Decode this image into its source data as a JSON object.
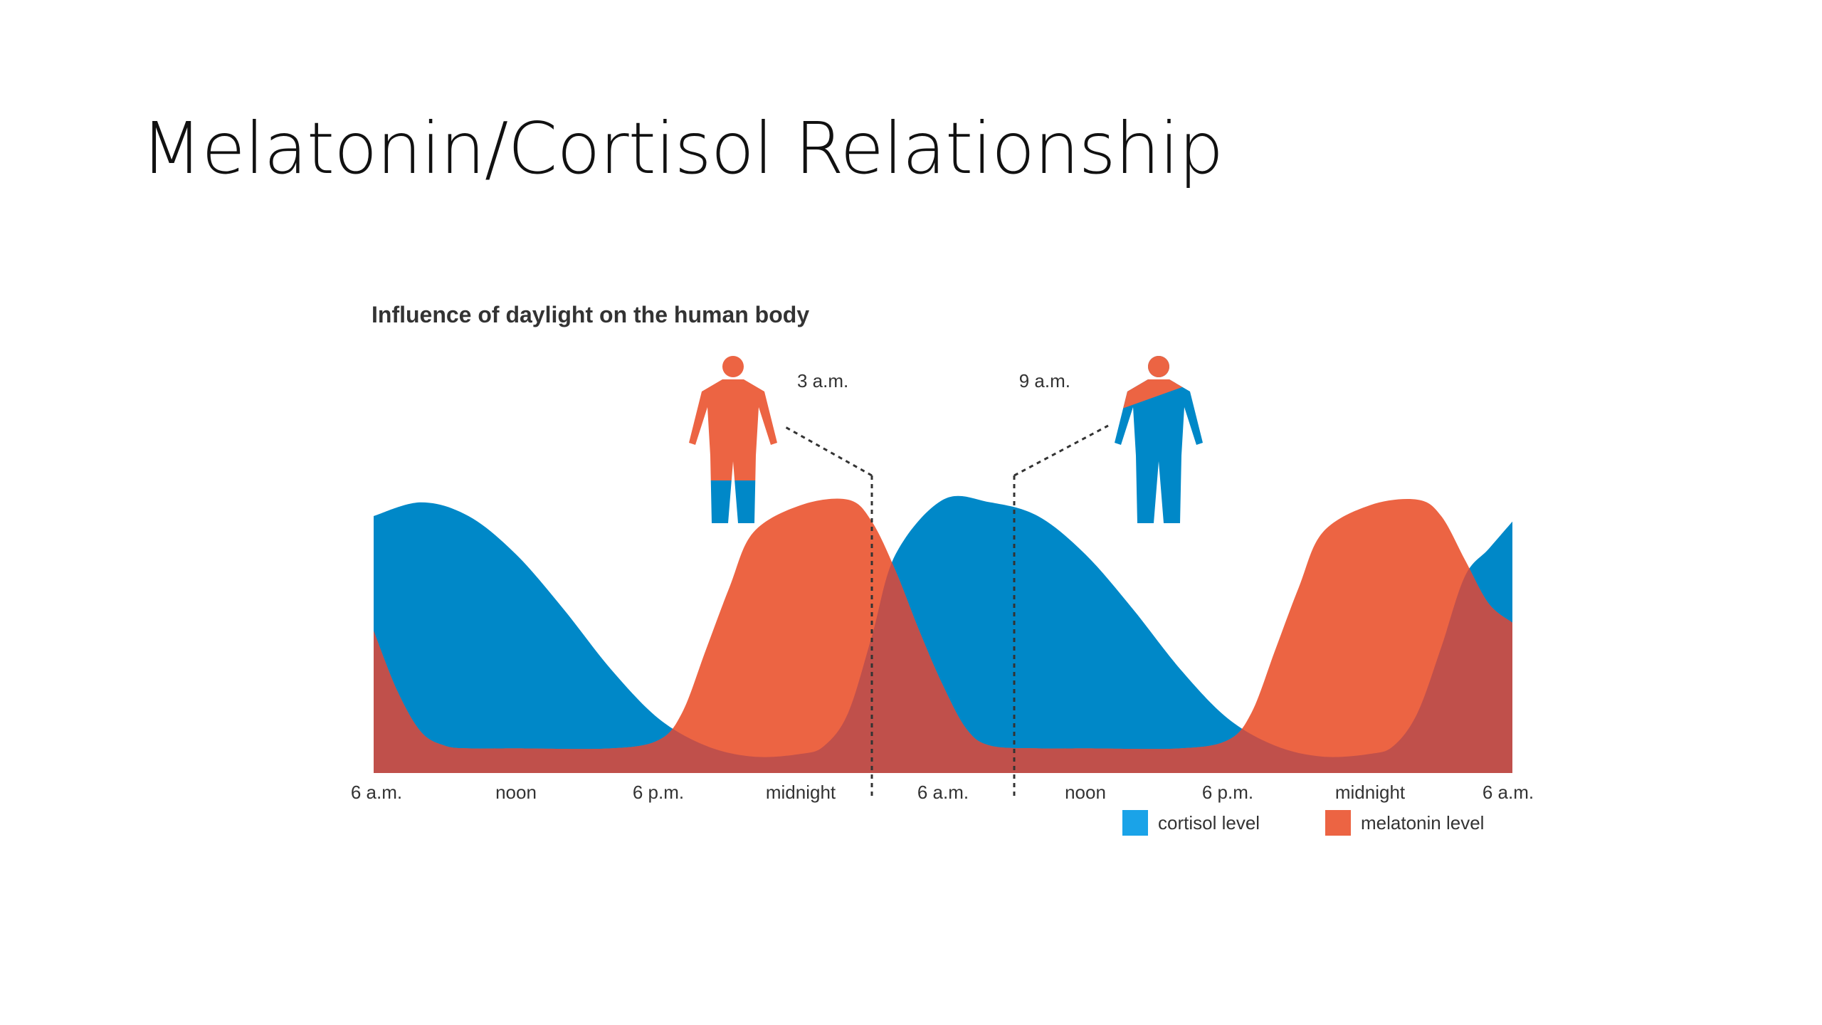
{
  "slide": {
    "title": "Melatonin/Cortisol Relationship"
  },
  "chart_data": {
    "type": "area",
    "title": "Influence of daylight on the human body",
    "x_ticks": [
      "6 a.m.",
      "noon",
      "6 p.m.",
      "midnight",
      "6 a.m.",
      "noon",
      "6 p.m.",
      "midnight",
      "6 a.m."
    ],
    "x_hours": [
      0,
      6,
      12,
      18,
      24,
      30,
      36,
      42,
      48
    ],
    "xlim": [
      0,
      48
    ],
    "ylim": [
      0,
      100
    ],
    "series": [
      {
        "name": "cortisol level",
        "color": "#0088c8",
        "x": [
          0,
          2,
          4,
          6,
          8,
          10,
          12,
          14,
          16,
          18,
          19,
          20,
          21,
          22,
          24,
          26,
          28,
          30,
          32,
          34,
          36,
          38,
          40,
          42,
          43,
          44,
          45,
          46,
          47,
          48
        ],
        "values": [
          94,
          99,
          94,
          80,
          60,
          38,
          20,
          10,
          6,
          7,
          10,
          22,
          50,
          80,
          100,
          99,
          94,
          80,
          60,
          38,
          20,
          10,
          6,
          7,
          10,
          22,
          46,
          72,
          82,
          92
        ]
      },
      {
        "name": "melatonin level",
        "color": "#ec6443",
        "x": [
          0,
          1,
          2,
          3,
          4,
          6,
          10,
          12,
          13,
          14,
          15,
          16,
          18,
          20,
          21,
          22,
          23,
          24,
          25,
          26,
          28,
          30,
          34,
          36,
          37,
          38,
          39,
          40,
          42,
          44,
          45,
          46,
          47,
          48
        ],
        "values": [
          52,
          30,
          15,
          10,
          9,
          9,
          9,
          12,
          22,
          45,
          68,
          88,
          98,
          100,
          92,
          74,
          52,
          32,
          16,
          10,
          9,
          9,
          9,
          12,
          22,
          45,
          68,
          88,
          98,
          100,
          94,
          78,
          62,
          55
        ]
      }
    ],
    "overlap_color": "#c0504b",
    "markers": [
      {
        "label": "3 a.m.",
        "hour": 21
      },
      {
        "label": "9 a.m.",
        "hour": 27
      }
    ],
    "legend": {
      "placement": "bottom-right"
    }
  }
}
